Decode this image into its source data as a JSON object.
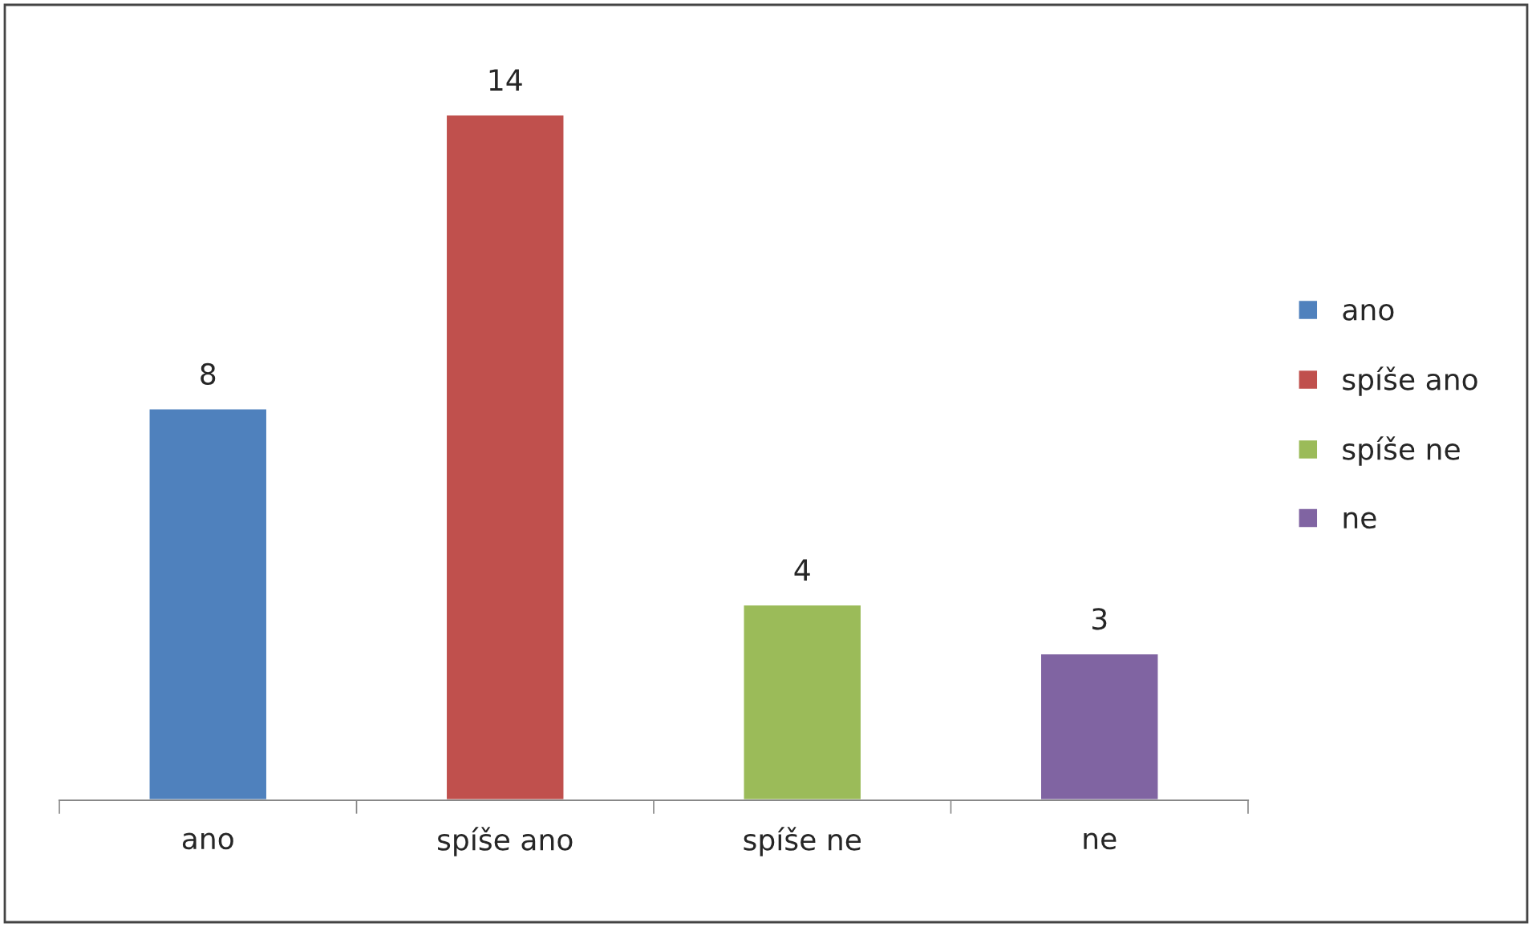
{
  "chart_data": {
    "type": "bar",
    "categories": [
      "ano",
      "spíše ano",
      "spíše ne",
      "ne"
    ],
    "series": [
      {
        "name": "ano",
        "color": "#4f81bd",
        "values": [
          8,
          null,
          null,
          null
        ]
      },
      {
        "name": "spíše ano",
        "color": "#c0504d",
        "values": [
          null,
          14,
          null,
          null
        ]
      },
      {
        "name": "spíše ne",
        "color": "#9bbb59",
        "values": [
          null,
          null,
          4,
          null
        ]
      },
      {
        "name": "ne",
        "color": "#8064a2",
        "values": [
          null,
          null,
          null,
          3
        ]
      }
    ],
    "data_labels": true,
    "legend": "right",
    "grid": false
  }
}
